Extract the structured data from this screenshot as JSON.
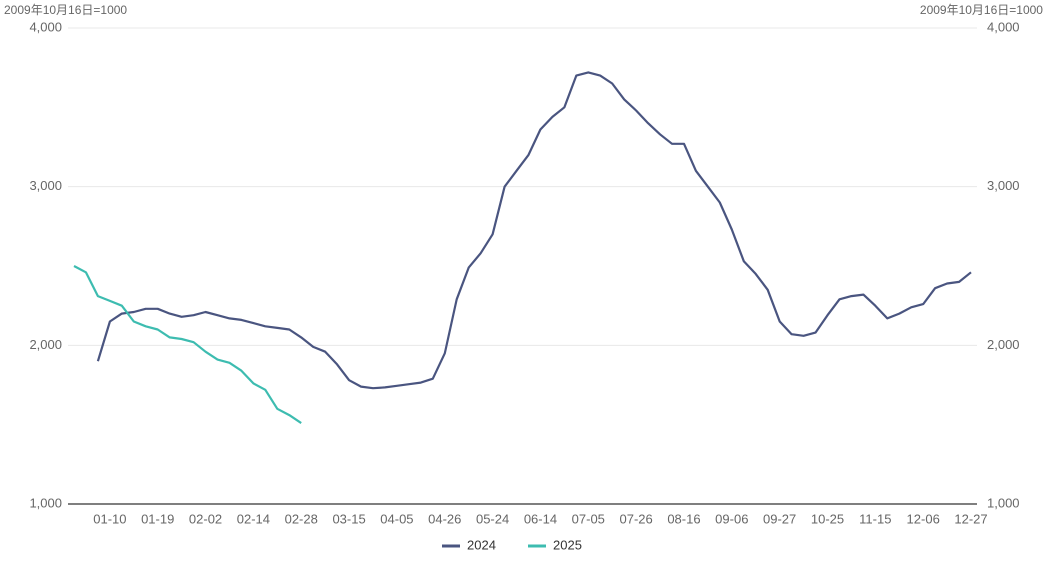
{
  "chart_data": {
    "type": "line",
    "y_label": "2009年10月16日=1000",
    "y2_label": "2009年10月16日=1000",
    "categories": [
      null,
      null,
      null,
      "01-10",
      null,
      null,
      null,
      "01-19",
      null,
      null,
      null,
      "02-02",
      null,
      null,
      null,
      "02-14",
      null,
      null,
      null,
      "02-28",
      null,
      null,
      null,
      "03-15",
      null,
      null,
      null,
      "04-05",
      null,
      null,
      null,
      "04-26",
      null,
      null,
      null,
      "05-24",
      null,
      null,
      null,
      "06-14",
      null,
      null,
      null,
      "07-05",
      null,
      null,
      null,
      "07-26",
      null,
      null,
      null,
      "08-16",
      null,
      null,
      null,
      "09-06",
      null,
      null,
      null,
      "09-27",
      null,
      null,
      null,
      "10-25",
      null,
      null,
      null,
      "11-15",
      null,
      null,
      null,
      "12-06",
      null,
      null,
      null,
      "12-27"
    ],
    "series": [
      {
        "name": "2024",
        "color": "#4a5580",
        "values": [
          null,
          null,
          1900,
          2150,
          2200,
          2210,
          2230,
          2230,
          2200,
          2180,
          2190,
          2210,
          2190,
          2170,
          2160,
          2140,
          2120,
          2110,
          2100,
          2050,
          1990,
          1960,
          1880,
          1780,
          1740,
          1730,
          1735,
          1745,
          1755,
          1765,
          1790,
          1950,
          2290,
          2490,
          2580,
          2700,
          3000,
          3100,
          3200,
          3360,
          3440,
          3500,
          3700,
          3720,
          3700,
          3650,
          3550,
          3480,
          3400,
          3330,
          3270,
          3270,
          3100,
          3000,
          2900,
          2730,
          2530,
          2450,
          2350,
          2150,
          2070,
          2060,
          2080,
          2190,
          2290,
          2310,
          2320,
          2250,
          2170,
          2200,
          2240,
          2260,
          2360,
          2390,
          2400,
          2460
        ]
      },
      {
        "name": "2025",
        "color": "#3dbcb0",
        "values": [
          2500,
          2460,
          2310,
          2280,
          2250,
          2150,
          2120,
          2100,
          2050,
          2040,
          2020,
          1960,
          1910,
          1890,
          1840,
          1760,
          1720,
          1600,
          1560,
          1510,
          null,
          null,
          null,
          null,
          null,
          null,
          null,
          null,
          null,
          null,
          null,
          null,
          null,
          null,
          null,
          null,
          null,
          null,
          null,
          null,
          null,
          null,
          null,
          null,
          null,
          null,
          null,
          null,
          null,
          null,
          null,
          null,
          null,
          null,
          null,
          null,
          null,
          null,
          null,
          null,
          null,
          null,
          null,
          null,
          null,
          null,
          null,
          null,
          null,
          null,
          null,
          null,
          null,
          null,
          null,
          null
        ]
      }
    ],
    "ylim": [
      1000,
      4000
    ],
    "yticks": [
      {
        "value": 1000,
        "label": "1,000"
      },
      {
        "value": 2000,
        "label": "2,000"
      },
      {
        "value": 3000,
        "label": "3,000"
      },
      {
        "value": 4000,
        "label": "4,000"
      }
    ],
    "y2lim": [
      1000,
      4000
    ],
    "y2ticks": [
      {
        "value": 1000,
        "label": "1,000"
      },
      {
        "value": 2000,
        "label": "2,000"
      },
      {
        "value": 3000,
        "label": "3,000"
      },
      {
        "value": 4000,
        "label": "4,000"
      }
    ],
    "grid": true,
    "legend": "bottom"
  }
}
